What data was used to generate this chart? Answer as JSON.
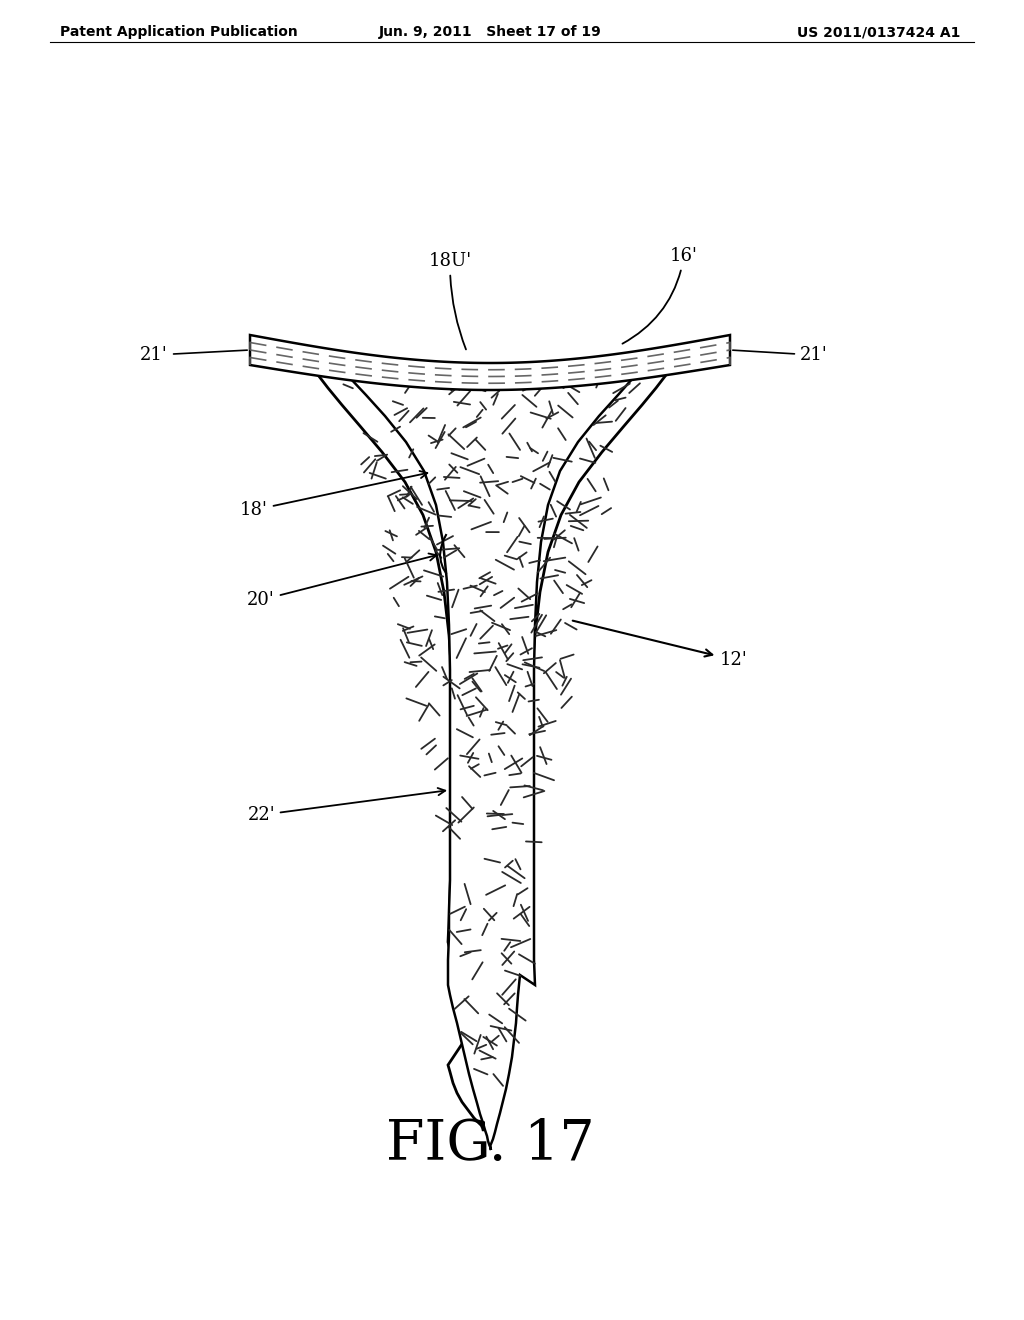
{
  "title": "FIG. 17",
  "header_left": "Patent Application Publication",
  "header_middle": "Jun. 9, 2011   Sheet 17 of 19",
  "header_right": "US 2011/0137424 A1",
  "bg_color": "#ffffff",
  "line_color": "#000000",
  "dashed_color": "#555555"
}
